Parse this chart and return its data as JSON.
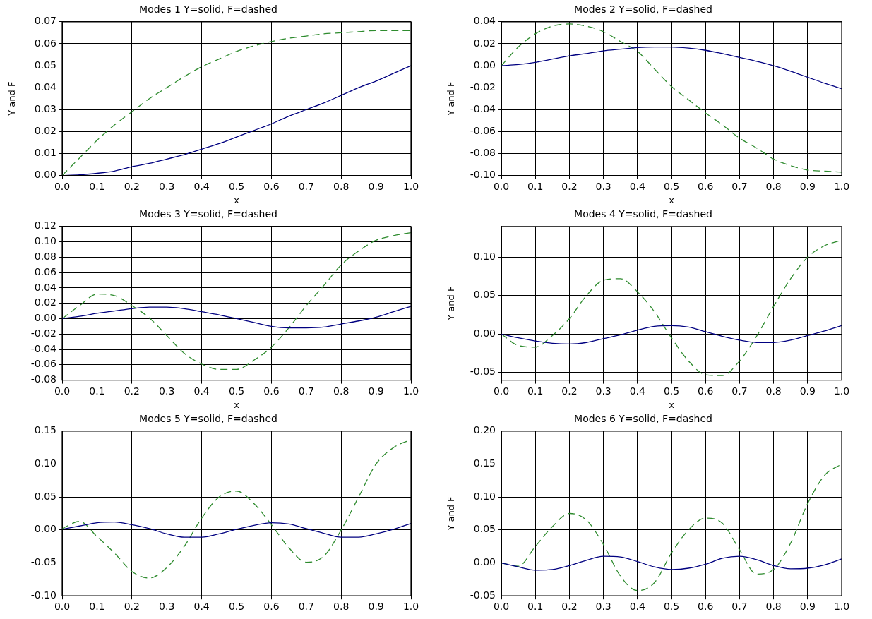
{
  "chart_data": [
    {
      "type": "line",
      "title": "Modes 1 Y=solid, F=dashed",
      "xlabel": "x",
      "ylabel": "Y and F",
      "x": [
        0,
        0.05,
        0.1,
        0.15,
        0.2,
        0.25,
        0.3,
        0.35,
        0.4,
        0.45,
        0.5,
        0.55,
        0.6,
        0.65,
        0.7,
        0.75,
        0.8,
        0.85,
        0.9,
        0.95,
        1.0
      ],
      "series": [
        {
          "color": "#000080",
          "line_style": "solid",
          "values": [
            0,
            0.0003,
            0.001,
            0.002,
            0.004,
            0.0055,
            0.0075,
            0.0095,
            0.012,
            0.0145,
            0.0175,
            0.0205,
            0.0235,
            0.027,
            0.03,
            0.033,
            0.0365,
            0.04,
            0.043,
            0.0465,
            0.05
          ]
        },
        {
          "color": "#2e8b2e",
          "line_style": "dashed",
          "values": [
            0,
            0.008,
            0.016,
            0.023,
            0.029,
            0.035,
            0.04,
            0.045,
            0.0495,
            0.053,
            0.0565,
            0.059,
            0.061,
            0.0625,
            0.0635,
            0.0645,
            0.065,
            0.0655,
            0.066,
            0.066,
            0.066
          ]
        }
      ],
      "xlim": [
        0,
        1
      ],
      "xticks": [
        {
          "value": 0,
          "label": "0.0"
        },
        {
          "value": 0.1,
          "label": "0.1"
        },
        {
          "value": 0.2,
          "label": "0.2"
        },
        {
          "value": 0.3,
          "label": "0.3"
        },
        {
          "value": 0.4,
          "label": "0.4"
        },
        {
          "value": 0.5,
          "label": "0.5"
        },
        {
          "value": 0.6,
          "label": "0.6"
        },
        {
          "value": 0.7,
          "label": "0.7"
        },
        {
          "value": 0.8,
          "label": "0.8"
        },
        {
          "value": 0.9,
          "label": "0.9"
        },
        {
          "value": 1,
          "label": "1.0"
        }
      ],
      "ylim": [
        0,
        0.07
      ],
      "yticks": [
        {
          "value": 0,
          "label": "0.00"
        },
        {
          "value": 0.01,
          "label": "0.01"
        },
        {
          "value": 0.02,
          "label": "0.02"
        },
        {
          "value": 0.03,
          "label": "0.03"
        },
        {
          "value": 0.04,
          "label": "0.04"
        },
        {
          "value": 0.05,
          "label": "0.05"
        },
        {
          "value": 0.06,
          "label": "0.06"
        },
        {
          "value": 0.07,
          "label": "0.07"
        }
      ],
      "grid": true,
      "legend": false,
      "marker": "none"
    },
    {
      "type": "line",
      "title": "Modes 2 Y=solid, F=dashed",
      "xlabel": "x",
      "ylabel": "Y and F",
      "x": [
        0,
        0.05,
        0.1,
        0.15,
        0.2,
        0.25,
        0.3,
        0.35,
        0.4,
        0.45,
        0.5,
        0.55,
        0.6,
        0.65,
        0.7,
        0.75,
        0.8,
        0.85,
        0.9,
        0.95,
        1.0
      ],
      "series": [
        {
          "color": "#000080",
          "line_style": "solid",
          "values": [
            0,
            0.001,
            0.003,
            0.006,
            0.009,
            0.011,
            0.0135,
            0.015,
            0.0165,
            0.017,
            0.017,
            0.016,
            0.014,
            0.011,
            0.0075,
            0.004,
            0,
            -0.005,
            -0.0105,
            -0.016,
            -0.021
          ]
        },
        {
          "color": "#2e8b2e",
          "line_style": "dashed",
          "values": [
            0,
            0.017,
            0.029,
            0.036,
            0.038,
            0.036,
            0.031,
            0.022,
            0.013,
            -0.003,
            -0.019,
            -0.031,
            -0.043,
            -0.054,
            -0.066,
            -0.075,
            -0.085,
            -0.091,
            -0.095,
            -0.096,
            -0.097
          ]
        }
      ],
      "xlim": [
        0,
        1
      ],
      "xticks": [
        {
          "value": 0,
          "label": "0.0"
        },
        {
          "value": 0.1,
          "label": "0.1"
        },
        {
          "value": 0.2,
          "label": "0.2"
        },
        {
          "value": 0.3,
          "label": "0.3"
        },
        {
          "value": 0.4,
          "label": "0.4"
        },
        {
          "value": 0.5,
          "label": "0.5"
        },
        {
          "value": 0.6,
          "label": "0.6"
        },
        {
          "value": 0.7,
          "label": "0.7"
        },
        {
          "value": 0.8,
          "label": "0.8"
        },
        {
          "value": 0.9,
          "label": "0.9"
        },
        {
          "value": 1,
          "label": "1.0"
        }
      ],
      "ylim": [
        -0.1,
        0.04
      ],
      "yticks": [
        {
          "value": -0.1,
          "label": "-0.10"
        },
        {
          "value": -0.08,
          "label": "-0.08"
        },
        {
          "value": -0.06,
          "label": "-0.06"
        },
        {
          "value": -0.04,
          "label": "-0.04"
        },
        {
          "value": -0.02,
          "label": "-0.02"
        },
        {
          "value": 0,
          "label": "0.00"
        },
        {
          "value": 0.02,
          "label": "0.02"
        },
        {
          "value": 0.04,
          "label": "0.04"
        }
      ],
      "grid": true,
      "legend": false,
      "marker": "none"
    },
    {
      "type": "line",
      "title": "Modes 3 Y=solid, F=dashed",
      "xlabel": "x",
      "x": [
        0,
        0.05,
        0.1,
        0.15,
        0.2,
        0.25,
        0.3,
        0.35,
        0.4,
        0.45,
        0.5,
        0.55,
        0.6,
        0.65,
        0.7,
        0.75,
        0.8,
        0.85,
        0.9,
        0.95,
        1.0
      ],
      "series": [
        {
          "color": "#000080",
          "line_style": "solid",
          "values": [
            0,
            0.003,
            0.007,
            0.01,
            0.013,
            0.015,
            0.015,
            0.013,
            0.009,
            0.005,
            0.0,
            -0.005,
            -0.01,
            -0.012,
            -0.012,
            -0.011,
            -0.007,
            -0.003,
            0.002,
            0.009,
            0.016
          ]
        },
        {
          "color": "#2e8b2e",
          "line_style": "dashed",
          "values": [
            0,
            0.017,
            0.032,
            0.03,
            0.017,
            0.001,
            -0.022,
            -0.045,
            -0.059,
            -0.066,
            -0.066,
            -0.054,
            -0.037,
            -0.012,
            0.017,
            0.043,
            0.07,
            0.088,
            0.102,
            0.108,
            0.112
          ]
        }
      ],
      "xlim": [
        0,
        1
      ],
      "xticks": [
        {
          "value": 0,
          "label": "0.0"
        },
        {
          "value": 0.1,
          "label": "0.1"
        },
        {
          "value": 0.2,
          "label": "0.2"
        },
        {
          "value": 0.3,
          "label": "0.3"
        },
        {
          "value": 0.4,
          "label": "0.4"
        },
        {
          "value": 0.5,
          "label": "0.5"
        },
        {
          "value": 0.6,
          "label": "0.6"
        },
        {
          "value": 0.7,
          "label": "0.7"
        },
        {
          "value": 0.8,
          "label": "0.8"
        },
        {
          "value": 0.9,
          "label": "0.9"
        },
        {
          "value": 1,
          "label": "1.0"
        }
      ],
      "ylim": [
        -0.08,
        0.12
      ],
      "yticks": [
        {
          "value": -0.08,
          "label": "-0.08"
        },
        {
          "value": -0.06,
          "label": "-0.06"
        },
        {
          "value": -0.04,
          "label": "-0.04"
        },
        {
          "value": -0.02,
          "label": "-0.02"
        },
        {
          "value": 0,
          "label": "0.00"
        },
        {
          "value": 0.02,
          "label": "0.02"
        },
        {
          "value": 0.04,
          "label": "0.04"
        },
        {
          "value": 0.06,
          "label": "0.06"
        },
        {
          "value": 0.08,
          "label": "0.08"
        },
        {
          "value": 0.1,
          "label": "0.10"
        },
        {
          "value": 0.12,
          "label": "0.12"
        }
      ],
      "grid": true,
      "legend": false,
      "marker": "none"
    },
    {
      "type": "line",
      "title": "Modes 4 Y=solid, F=dashed",
      "xlabel": "x",
      "ylabel": "Y and F",
      "x": [
        0,
        0.05,
        0.1,
        0.15,
        0.2,
        0.25,
        0.3,
        0.35,
        0.4,
        0.45,
        0.5,
        0.55,
        0.6,
        0.65,
        0.7,
        0.75,
        0.8,
        0.85,
        0.9,
        0.95,
        1.0
      ],
      "series": [
        {
          "color": "#000080",
          "line_style": "solid",
          "values": [
            0,
            -0.005,
            -0.009,
            -0.012,
            -0.013,
            -0.011,
            -0.006,
            -0.001,
            0.005,
            0.01,
            0.011,
            0.009,
            0.003,
            -0.003,
            -0.008,
            -0.011,
            -0.011,
            -0.008,
            -0.002,
            0.004,
            0.011
          ]
        },
        {
          "color": "#2e8b2e",
          "line_style": "dashed",
          "values": [
            0,
            -0.015,
            -0.017,
            -0.002,
            0.02,
            0.05,
            0.07,
            0.072,
            0.055,
            0.029,
            -0.005,
            -0.035,
            -0.053,
            -0.054,
            -0.035,
            -0.003,
            0.036,
            0.072,
            0.1,
            0.115,
            0.122
          ]
        }
      ],
      "xlim": [
        0,
        1
      ],
      "xticks": [
        {
          "value": 0,
          "label": "0.0"
        },
        {
          "value": 0.1,
          "label": "0.1"
        },
        {
          "value": 0.2,
          "label": "0.2"
        },
        {
          "value": 0.3,
          "label": "0.3"
        },
        {
          "value": 0.4,
          "label": "0.4"
        },
        {
          "value": 0.5,
          "label": "0.5"
        },
        {
          "value": 0.6,
          "label": "0.6"
        },
        {
          "value": 0.7,
          "label": "0.7"
        },
        {
          "value": 0.8,
          "label": "0.8"
        },
        {
          "value": 0.9,
          "label": "0.9"
        },
        {
          "value": 1,
          "label": "1.0"
        }
      ],
      "ylim": [
        -0.06,
        0.14
      ],
      "yticks": [
        {
          "value": -0.05,
          "label": "-0.05"
        },
        {
          "value": 0,
          "label": "0.00"
        },
        {
          "value": 0.05,
          "label": "0.05"
        },
        {
          "value": 0.1,
          "label": "0.10"
        }
      ],
      "grid": true,
      "legend": false,
      "marker": "none"
    },
    {
      "type": "line",
      "title": "Modes 5 Y=solid, F=dashed",
      "x": [
        0,
        0.05,
        0.1,
        0.15,
        0.2,
        0.25,
        0.3,
        0.35,
        0.4,
        0.45,
        0.5,
        0.55,
        0.6,
        0.65,
        0.7,
        0.75,
        0.8,
        0.85,
        0.9,
        0.95,
        1.0
      ],
      "series": [
        {
          "color": "#000080",
          "line_style": "solid",
          "values": [
            0.001,
            0.006,
            0.011,
            0.012,
            0.008,
            0.002,
            -0.006,
            -0.011,
            -0.011,
            -0.006,
            0.001,
            0.007,
            0.011,
            0.009,
            0.002,
            -0.005,
            -0.011,
            -0.011,
            -0.006,
            0.001,
            0.01
          ]
        },
        {
          "color": "#2e8b2e",
          "line_style": "dashed",
          "values": [
            0.002,
            0.013,
            -0.01,
            -0.035,
            -0.063,
            -0.073,
            -0.057,
            -0.025,
            0.018,
            0.05,
            0.059,
            0.04,
            0.008,
            -0.027,
            -0.049,
            -0.04,
            0.0,
            0.05,
            0.1,
            0.125,
            0.137
          ]
        }
      ],
      "xlim": [
        0,
        1
      ],
      "xticks": [
        {
          "value": 0,
          "label": "0.0"
        },
        {
          "value": 0.1,
          "label": "0.1"
        },
        {
          "value": 0.2,
          "label": "0.2"
        },
        {
          "value": 0.3,
          "label": "0.3"
        },
        {
          "value": 0.4,
          "label": "0.4"
        },
        {
          "value": 0.5,
          "label": "0.5"
        },
        {
          "value": 0.6,
          "label": "0.6"
        },
        {
          "value": 0.7,
          "label": "0.7"
        },
        {
          "value": 0.8,
          "label": "0.8"
        },
        {
          "value": 0.9,
          "label": "0.9"
        },
        {
          "value": 1,
          "label": "1.0"
        }
      ],
      "ylim": [
        -0.1,
        0.15
      ],
      "yticks": [
        {
          "value": -0.1,
          "label": "-0.10"
        },
        {
          "value": -0.05,
          "label": "-0.05"
        },
        {
          "value": 0,
          "label": "0.00"
        },
        {
          "value": 0.05,
          "label": "0.05"
        },
        {
          "value": 0.1,
          "label": "0.10"
        },
        {
          "value": 0.15,
          "label": "0.15"
        }
      ],
      "grid": true,
      "legend": false,
      "marker": "none"
    },
    {
      "type": "line",
      "title": "Modes 6 Y=solid, F=dashed",
      "ylabel": "Y and F",
      "x": [
        0,
        0.05,
        0.1,
        0.15,
        0.2,
        0.25,
        0.3,
        0.35,
        0.4,
        0.45,
        0.5,
        0.55,
        0.6,
        0.65,
        0.7,
        0.75,
        0.8,
        0.85,
        0.9,
        0.95,
        1.0
      ],
      "series": [
        {
          "color": "#000080",
          "line_style": "solid",
          "values": [
            0,
            -0.006,
            -0.011,
            -0.01,
            -0.004,
            0.004,
            0.01,
            0.009,
            0.002,
            -0.006,
            -0.01,
            -0.008,
            -0.002,
            0.007,
            0.01,
            0.005,
            -0.004,
            -0.009,
            -0.008,
            -0.003,
            0.006
          ]
        },
        {
          "color": "#2e8b2e",
          "line_style": "dashed",
          "values": [
            0,
            -0.005,
            0.025,
            0.055,
            0.075,
            0.065,
            0.028,
            -0.02,
            -0.042,
            -0.03,
            0.015,
            0.05,
            0.068,
            0.06,
            0.02,
            -0.017,
            -0.01,
            0.03,
            0.09,
            0.133,
            0.15
          ]
        }
      ],
      "xlim": [
        0,
        1
      ],
      "xticks": [
        {
          "value": 0,
          "label": "0.0"
        },
        {
          "value": 0.1,
          "label": "0.1"
        },
        {
          "value": 0.2,
          "label": "0.2"
        },
        {
          "value": 0.3,
          "label": "0.3"
        },
        {
          "value": 0.4,
          "label": "0.4"
        },
        {
          "value": 0.5,
          "label": "0.5"
        },
        {
          "value": 0.6,
          "label": "0.6"
        },
        {
          "value": 0.7,
          "label": "0.7"
        },
        {
          "value": 0.8,
          "label": "0.8"
        },
        {
          "value": 0.9,
          "label": "0.9"
        },
        {
          "value": 1,
          "label": "1.0"
        }
      ],
      "ylim": [
        -0.05,
        0.2
      ],
      "yticks": [
        {
          "value": -0.05,
          "label": "-0.05"
        },
        {
          "value": 0,
          "label": "0.00"
        },
        {
          "value": 0.05,
          "label": "0.05"
        },
        {
          "value": 0.1,
          "label": "0.10"
        },
        {
          "value": 0.15,
          "label": "0.15"
        },
        {
          "value": 0.2,
          "label": "0.20"
        }
      ],
      "grid": true,
      "legend": false,
      "marker": "none"
    }
  ]
}
